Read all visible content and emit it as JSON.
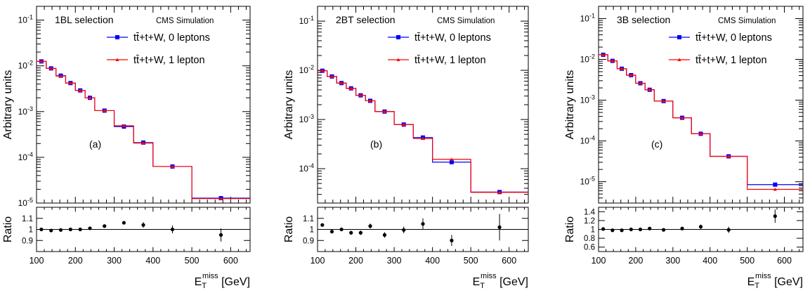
{
  "chart_data": [
    {
      "type": "line",
      "panel_label": "(a)",
      "selection_label": "1BL selection",
      "sim_label": "CMS Simulation",
      "ylabel": "Arbitrary units",
      "ratio_ylabel": "Ratio",
      "xlabel_main": "E",
      "xlabel_sub": "T",
      "xlabel_sup": "miss",
      "xlabel_unit": "[GeV]",
      "xlim": [
        100,
        650
      ],
      "ylim": [
        1e-05,
        0.2
      ],
      "yscale": "log",
      "ratio_ylim": [
        0.8,
        1.2
      ],
      "x_ticks": [
        "100",
        "200",
        "300",
        "400",
        "500",
        "600"
      ],
      "y_ticks": [
        "10^-5",
        "10^-4",
        "10^-3",
        "10^-2",
        "10^-1"
      ],
      "ratio_ticks": [
        "0.9",
        "1",
        "1.1"
      ],
      "ratio_tick_values": [
        0.9,
        1.0,
        1.1
      ],
      "bin_edges": [
        100,
        125,
        150,
        175,
        200,
        225,
        250,
        300,
        350,
        400,
        500,
        650
      ],
      "series": [
        {
          "name": "tt̄+t+W, 0 leptons",
          "color": "#0000ff",
          "marker": "square",
          "values": [
            0.0125,
            0.0088,
            0.0061,
            0.0042,
            0.0029,
            0.002,
            0.00105,
            0.00047,
            0.00021,
            6.3e-05,
            1.28e-05
          ]
        },
        {
          "name": "tt̄+t+W, 1 lepton",
          "color": "#ff0000",
          "marker": "triangle",
          "values": [
            0.0125,
            0.0088,
            0.006,
            0.0042,
            0.0029,
            0.002,
            0.00105,
            0.00049,
            0.000205,
            6.3e-05,
            1.25e-05
          ]
        }
      ],
      "ratio": {
        "x": [
          112.5,
          137.5,
          162.5,
          187.5,
          212.5,
          237.5,
          275,
          325,
          375,
          450,
          575
        ],
        "y": [
          1.0,
          0.99,
          0.995,
          1.0,
          1.0,
          1.01,
          1.03,
          1.06,
          1.04,
          1.0,
          0.95
        ],
        "err": [
          0.005,
          0.006,
          0.006,
          0.006,
          0.007,
          0.008,
          0.009,
          0.015,
          0.025,
          0.035,
          0.06
        ]
      },
      "legend_position": "top-right",
      "grid": false
    },
    {
      "type": "line",
      "panel_label": "(b)",
      "selection_label": "2BT selection",
      "sim_label": "CMS Simulation",
      "ylabel": "Arbitrary units",
      "ratio_ylabel": "Ratio",
      "xlabel_main": "E",
      "xlabel_sub": "T",
      "xlabel_sup": "miss",
      "xlabel_unit": "[GeV]",
      "xlim": [
        100,
        650
      ],
      "ylim": [
        2e-05,
        0.2
      ],
      "yscale": "log",
      "ratio_ylim": [
        0.8,
        1.2
      ],
      "x_ticks": [
        "100",
        "200",
        "300",
        "400",
        "500",
        "600"
      ],
      "y_ticks": [
        "10^-4",
        "10^-3",
        "10^-2",
        "10^-1"
      ],
      "ratio_ticks": [
        "0.9",
        "1",
        "1.1"
      ],
      "ratio_tick_values": [
        0.9,
        1.0,
        1.1
      ],
      "bin_edges": [
        100,
        125,
        150,
        175,
        200,
        225,
        250,
        300,
        350,
        400,
        500,
        650
      ],
      "series": [
        {
          "name": "tt̄+t+W, 0 leptons",
          "color": "#0000ff",
          "marker": "square",
          "values": [
            0.0098,
            0.0075,
            0.0055,
            0.0043,
            0.0031,
            0.0024,
            0.00145,
            0.00079,
            0.00043,
            0.000136,
            3.35e-05
          ]
        },
        {
          "name": "tt̄+t+W, 1 lepton",
          "color": "#ff0000",
          "marker": "triangle",
          "values": [
            0.0098,
            0.0075,
            0.0055,
            0.0043,
            0.0031,
            0.0024,
            0.00145,
            0.00079,
            0.00041,
            0.000155,
            3.3e-05
          ]
        }
      ],
      "ratio": {
        "x": [
          112.5,
          137.5,
          162.5,
          187.5,
          212.5,
          237.5,
          275,
          325,
          375,
          450,
          575
        ],
        "y": [
          1.04,
          0.98,
          1.0,
          0.97,
          0.97,
          1.03,
          0.95,
          0.995,
          1.05,
          0.9,
          1.02
        ],
        "err": [
          0.01,
          0.012,
          0.015,
          0.017,
          0.02,
          0.022,
          0.025,
          0.03,
          0.05,
          0.05,
          0.12
        ]
      },
      "legend_position": "top-right",
      "grid": false
    },
    {
      "type": "line",
      "panel_label": "(c)",
      "selection_label": "3B selection",
      "sim_label": "CMS Simulation",
      "ylabel": "Arbitrary units",
      "ratio_ylabel": "Ratio",
      "xlabel_main": "E",
      "xlabel_sub": "T",
      "xlabel_sup": "miss",
      "xlabel_unit": "[GeV]",
      "xlim": [
        100,
        650
      ],
      "ylim": [
        3e-06,
        0.2
      ],
      "yscale": "log",
      "ratio_ylim": [
        0.5,
        1.5
      ],
      "x_ticks": [
        "100",
        "200",
        "300",
        "400",
        "500",
        "600"
      ],
      "y_ticks": [
        "10^-5",
        "10^-4",
        "10^-3",
        "10^-2",
        "10^-1"
      ],
      "ratio_ticks": [
        "0.6",
        "0.8",
        "1",
        "1.2",
        "1.4"
      ],
      "ratio_tick_values": [
        0.6,
        0.8,
        1.0,
        1.2,
        1.4
      ],
      "bin_edges": [
        100,
        125,
        150,
        175,
        200,
        225,
        250,
        300,
        350,
        400,
        500,
        650
      ],
      "series": [
        {
          "name": "tt̄+t+W, 0 leptons",
          "color": "#0000ff",
          "marker": "square",
          "values": [
            0.013,
            0.0092,
            0.0059,
            0.0041,
            0.0026,
            0.0018,
            0.00095,
            0.00037,
            0.00015,
            4.2e-05,
            8.5e-06
          ]
        },
        {
          "name": "tt̄+t+W, 1 lepton",
          "color": "#ff0000",
          "marker": "triangle",
          "values": [
            0.013,
            0.0092,
            0.0059,
            0.0041,
            0.0026,
            0.0018,
            0.00095,
            0.00037,
            0.00015,
            4.2e-05,
            6.5e-06
          ]
        }
      ],
      "ratio": {
        "x": [
          112.5,
          137.5,
          162.5,
          187.5,
          212.5,
          237.5,
          275,
          325,
          375,
          450,
          575
        ],
        "y": [
          1.01,
          0.98,
          0.98,
          1.0,
          1.0,
          1.02,
          0.99,
          1.02,
          1.06,
          0.99,
          1.3
        ],
        "err": [
          0.01,
          0.01,
          0.01,
          0.012,
          0.012,
          0.015,
          0.015,
          0.03,
          0.05,
          0.07,
          0.15
        ]
      },
      "legend_position": "top-right",
      "grid": false
    }
  ]
}
